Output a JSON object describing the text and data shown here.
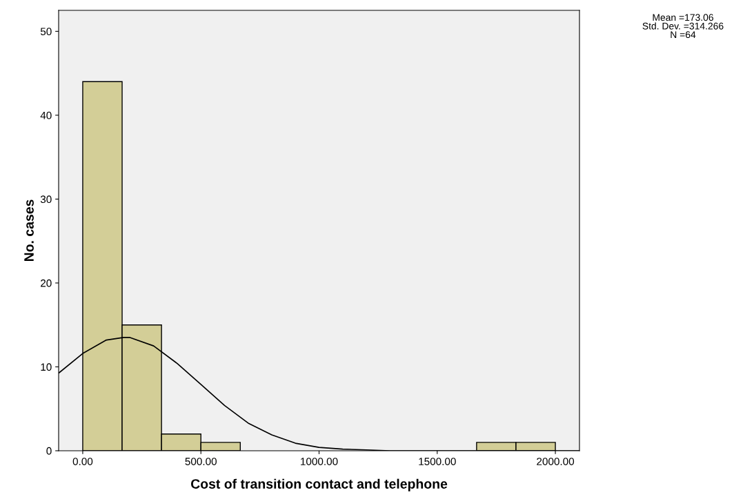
{
  "chart_data": {
    "type": "histogram",
    "xlabel": "Cost of transition contact and telephone",
    "ylabel": "No. cases",
    "annotations": [
      "Mean =173.06\nStd. Dev. =314.266\nN =64"
    ],
    "series": [
      {
        "color": "#d3ce97",
        "bins": [
          0,
          166.67,
          333.33,
          500,
          666.67,
          833.33,
          1000,
          1166.67,
          1333.33,
          1500,
          1666.67,
          1833.33,
          2000
        ],
        "values": [
          44,
          15,
          2,
          1,
          0,
          0,
          0,
          0,
          0,
          0,
          1,
          1
        ]
      },
      {
        "type": "line",
        "color": "#000000",
        "x": [
          -100,
          0,
          100,
          173,
          200,
          300,
          400,
          500,
          600,
          700,
          800,
          900,
          1000,
          1100,
          1200,
          1300,
          1400,
          1500,
          1700,
          1900,
          2100
        ],
        "values": [
          9.3,
          11.6,
          13.2,
          13.5,
          13.5,
          12.5,
          10.4,
          7.9,
          5.4,
          3.3,
          1.9,
          0.9,
          0.4,
          0.2,
          0.1,
          0,
          0,
          0,
          0,
          0,
          0
        ]
      }
    ],
    "xlim": [
      -102,
      2102
    ],
    "ylim": [
      0,
      52.5
    ],
    "xticks": [
      {
        "value": 0,
        "label": "0.00"
      },
      {
        "value": 500,
        "label": "500.00"
      },
      {
        "value": 1000,
        "label": "1000.00"
      },
      {
        "value": 1500,
        "label": "1500.00"
      },
      {
        "value": 2000,
        "label": "2000.00"
      }
    ],
    "yticks": [
      0,
      10,
      20,
      30,
      40,
      50
    ],
    "grid": false
  }
}
